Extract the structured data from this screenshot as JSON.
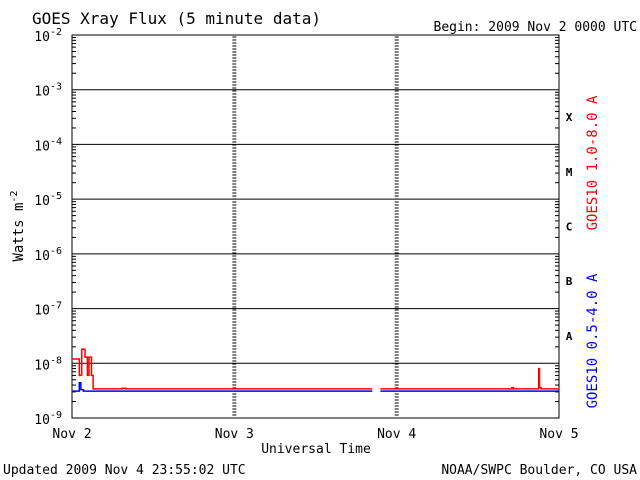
{
  "chart_data": {
    "type": "line",
    "title": "GOES Xray Flux (5 minute data)",
    "begin_label": "Begin:  2009 Nov 2 0000 UTC",
    "xlabel": "Universal Time",
    "ylabel": "Watts m",
    "ylabel_exp": "-2",
    "y_scale": "log",
    "ylim": [
      1e-09,
      0.01
    ],
    "y_ticks": [
      {
        "mant": "10",
        "exp": "-2"
      },
      {
        "mant": "10",
        "exp": "-3"
      },
      {
        "mant": "10",
        "exp": "-4"
      },
      {
        "mant": "10",
        "exp": "-5"
      },
      {
        "mant": "10",
        "exp": "-6"
      },
      {
        "mant": "10",
        "exp": "-7"
      },
      {
        "mant": "10",
        "exp": "-8"
      },
      {
        "mant": "10",
        "exp": "-9"
      }
    ],
    "xlim": [
      "2009-11-02",
      "2009-11-05"
    ],
    "x_ticks": [
      "Nov 2",
      "Nov 3",
      "Nov 4",
      "Nov 5"
    ],
    "flare_classes": [
      "X",
      "M",
      "C",
      "B",
      "A"
    ],
    "grid": true,
    "series": [
      {
        "name": "GOES10 1.0-8.0 A",
        "color": "#ff0000",
        "points": [
          [
            0.0,
            1.2e-08
          ],
          [
            0.04,
            1.2e-08
          ],
          [
            0.045,
            6e-09
          ],
          [
            0.055,
            6e-09
          ],
          [
            0.06,
            1.8e-08
          ],
          [
            0.075,
            1.8e-08
          ],
          [
            0.08,
            1.3e-08
          ],
          [
            0.09,
            1.3e-08
          ],
          [
            0.095,
            6e-09
          ],
          [
            0.1,
            6e-09
          ],
          [
            0.105,
            1.3e-08
          ],
          [
            0.115,
            1.3e-08
          ],
          [
            0.12,
            6e-09
          ],
          [
            0.125,
            6e-09
          ],
          [
            0.13,
            3.4e-09
          ],
          [
            0.3,
            3.4e-09
          ],
          [
            0.31,
            3.5e-09
          ],
          [
            0.33,
            3.4e-09
          ],
          [
            1.85,
            3.4e-09
          ],
          [
            1.9,
            3.4e-09
          ],
          [
            2.7,
            3.4e-09
          ],
          [
            2.71,
            3.6e-09
          ],
          [
            2.72,
            3.4e-09
          ],
          [
            2.87,
            3.4e-09
          ],
          [
            2.875,
            8e-09
          ],
          [
            2.88,
            3.6e-09
          ],
          [
            2.89,
            3.4e-09
          ],
          [
            3.0,
            3.4e-09
          ]
        ]
      },
      {
        "name": "GOES10 0.5-4.0 A",
        "color": "#0000ff",
        "points": [
          [
            0.0,
            3.1e-09
          ],
          [
            0.035,
            3.1e-09
          ],
          [
            0.045,
            4.4e-09
          ],
          [
            0.055,
            3.3e-09
          ],
          [
            0.07,
            3.1e-09
          ],
          [
            1.85,
            3.1e-09
          ],
          [
            1.9,
            3.1e-09
          ],
          [
            3.0,
            3.1e-09
          ]
        ]
      }
    ],
    "gap": [
      1.85,
      1.9
    ],
    "footer_left": "Updated 2009 Nov  4 23:55:02 UTC",
    "footer_right": "NOAA/SWPC Boulder, CO USA"
  }
}
